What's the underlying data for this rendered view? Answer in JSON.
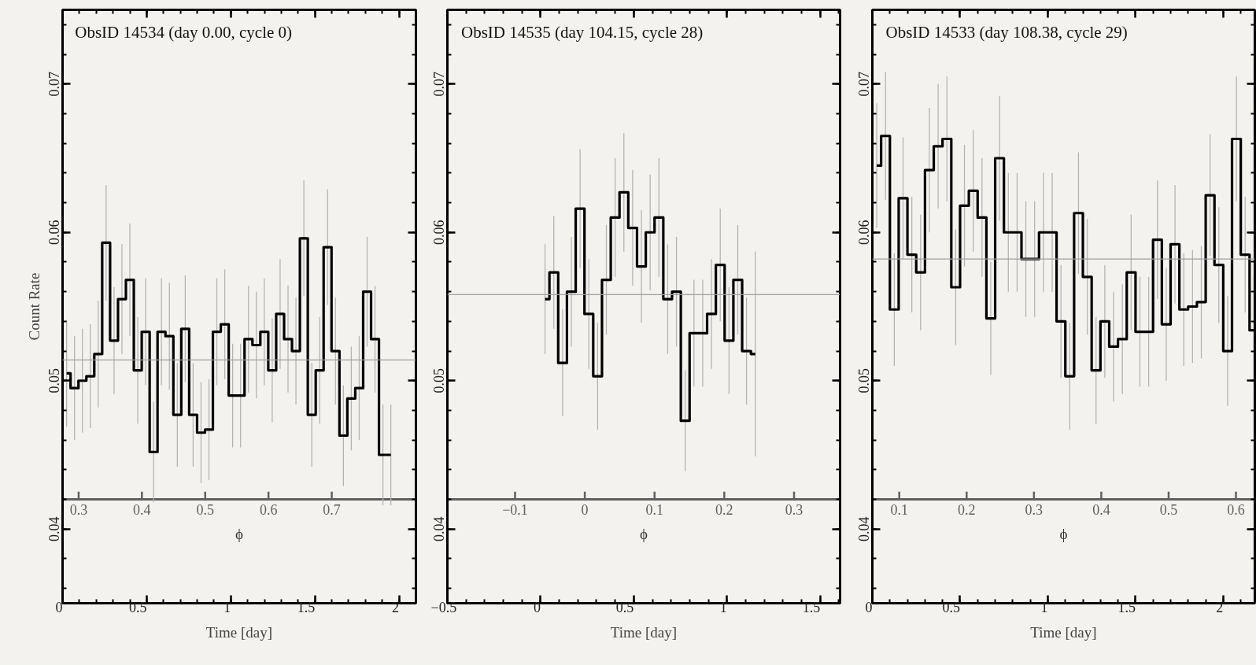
{
  "chart_data": [
    {
      "type": "step",
      "title": "ObsID 14534 (day 0.00, cycle 0)",
      "xlabel": "Time [day]",
      "ylabel": "Count Rate",
      "x2label": "ϕ",
      "xlim": [
        0,
        2.1
      ],
      "xticks": [
        0,
        0.5,
        1,
        1.5,
        2
      ],
      "ylim": [
        0.035,
        0.075
      ],
      "yticks": [
        0.04,
        0.05,
        0.06,
        0.07
      ],
      "x2lim": [
        0.2746,
        0.833
      ],
      "x2ticks": [
        0.3,
        0.4,
        0.5,
        0.6,
        0.7
      ],
      "ref_lines": [
        {
          "axis": "y",
          "value": 0.0514,
          "color": "#a0a0a0"
        }
      ],
      "series": [
        {
          "color": "#000000",
          "x": [
            0.024,
            0.071,
            0.118,
            0.165,
            0.212,
            0.259,
            0.306,
            0.353,
            0.4,
            0.447,
            0.494,
            0.541,
            0.588,
            0.635,
            0.682,
            0.729,
            0.776,
            0.823,
            0.87,
            0.917,
            0.964,
            1.011,
            1.058,
            1.105,
            1.152,
            1.199,
            1.246,
            1.293,
            1.34,
            1.387,
            1.434,
            1.481,
            1.528,
            1.575,
            1.622,
            1.669,
            1.716,
            1.763,
            1.81,
            1.857,
            1.904,
            1.951
          ],
          "values": [
            0.0505,
            0.0495,
            0.05,
            0.0503,
            0.0518,
            0.0593,
            0.0527,
            0.0555,
            0.0568,
            0.0507,
            0.0533,
            0.0452,
            0.0533,
            0.053,
            0.0477,
            0.0535,
            0.0477,
            0.0465,
            0.0467,
            0.0533,
            0.0538,
            0.049,
            0.049,
            0.0528,
            0.0524,
            0.0533,
            0.0507,
            0.0545,
            0.0528,
            0.052,
            0.0596,
            0.0477,
            0.0507,
            0.059,
            0.052,
            0.0463,
            0.0488,
            0.0495,
            0.056,
            0.0528,
            0.045,
            0.045
          ],
          "errors": [
            0.0036,
            0.0035,
            0.0035,
            0.0035,
            0.0036,
            0.0039,
            0.0036,
            0.0037,
            0.0038,
            0.0036,
            0.0036,
            0.0034,
            0.0036,
            0.0036,
            0.0035,
            0.0036,
            0.0035,
            0.0034,
            0.0034,
            0.0036,
            0.0037,
            0.0035,
            0.0035,
            0.0036,
            0.0036,
            0.0036,
            0.0035,
            0.0037,
            0.0036,
            0.0036,
            0.0039,
            0.0035,
            0.0036,
            0.0039,
            0.0036,
            0.0034,
            0.0035,
            0.0035,
            0.0037,
            0.0036,
            0.0034,
            0.0034
          ]
        }
      ]
    },
    {
      "type": "step",
      "title": "ObsID 14535 (day 104.15, cycle 28)",
      "xlabel": "Time [day]",
      "x2label": "ϕ",
      "xlim": [
        -0.5,
        1.607
      ],
      "xticks": [
        {
          "value": -0.5,
          "label": "−0.5"
        },
        0,
        0.5,
        1,
        1.5
      ],
      "ylim": [
        0.035,
        0.075
      ],
      "yticks": [
        0.04,
        0.05,
        0.06,
        0.07
      ],
      "x2lim": [
        -0.197,
        0.366
      ],
      "x2ticks": [
        {
          "value": -0.1,
          "label": "−0.1"
        },
        0,
        0.1,
        0.2,
        0.3
      ],
      "ref_lines": [
        {
          "axis": "y",
          "value": 0.0558,
          "color": "#a0a0a0"
        }
      ],
      "series": [
        {
          "color": "#000000",
          "x": [
            0.024,
            0.071,
            0.118,
            0.165,
            0.212,
            0.259,
            0.306,
            0.353,
            0.4,
            0.447,
            0.494,
            0.541,
            0.588,
            0.635,
            0.682,
            0.729,
            0.776,
            0.823,
            0.87,
            0.917,
            0.964,
            1.011,
            1.058,
            1.105,
            1.152
          ],
          "values": [
            0.0555,
            0.0573,
            0.0512,
            0.056,
            0.0616,
            0.0545,
            0.0503,
            0.0568,
            0.061,
            0.0627,
            0.0603,
            0.0577,
            0.06,
            0.061,
            0.0555,
            0.056,
            0.0473,
            0.0532,
            0.0532,
            0.0545,
            0.0578,
            0.0527,
            0.0568,
            0.052,
            0.0518
          ],
          "errors": [
            0.0037,
            0.0038,
            0.0036,
            0.0037,
            0.004,
            0.0037,
            0.0036,
            0.0037,
            0.004,
            0.004,
            0.0039,
            0.0038,
            0.0039,
            0.004,
            0.0037,
            0.0037,
            0.0034,
            0.0036,
            0.0036,
            0.0037,
            0.0038,
            0.0036,
            0.0037,
            0.0036,
            0.0069
          ]
        }
      ]
    },
    {
      "type": "step",
      "title": "ObsID 14533 (day 108.38, cycle 29)",
      "xlabel": "Time [day]",
      "x2label": "ϕ",
      "xlim": [
        0,
        2.18
      ],
      "xticks": [
        0,
        0.5,
        1,
        1.5,
        2
      ],
      "ylim": [
        0.035,
        0.075
      ],
      "yticks": [
        0.04,
        0.05,
        0.06,
        0.07
      ],
      "x2lim": [
        0.06,
        0.628
      ],
      "x2ticks": [
        0.1,
        0.2,
        0.3,
        0.4,
        0.5,
        0.6
      ],
      "ref_lines": [
        {
          "axis": "y",
          "value": 0.0582,
          "color": "#a0a0a0"
        }
      ],
      "series": [
        {
          "color": "#000000",
          "x": [
            0.025,
            0.075,
            0.125,
            0.175,
            0.225,
            0.275,
            0.325,
            0.375,
            0.425,
            0.475,
            0.525,
            0.575,
            0.625,
            0.675,
            0.725,
            0.775,
            0.825,
            0.875,
            0.925,
            0.975,
            1.025,
            1.075,
            1.125,
            1.175,
            1.225,
            1.275,
            1.325,
            1.375,
            1.425,
            1.475,
            1.525,
            1.575,
            1.625,
            1.675,
            1.725,
            1.775,
            1.825,
            1.875,
            1.925,
            1.975,
            2.025,
            2.075,
            2.125,
            2.175
          ],
          "values": [
            0.0645,
            0.0665,
            0.0548,
            0.0623,
            0.0585,
            0.0573,
            0.0642,
            0.0658,
            0.0663,
            0.0563,
            0.0618,
            0.0628,
            0.061,
            0.0542,
            0.065,
            0.06,
            0.06,
            0.0582,
            0.0582,
            0.06,
            0.06,
            0.054,
            0.0503,
            0.0613,
            0.057,
            0.0507,
            0.054,
            0.0523,
            0.0528,
            0.0573,
            0.0533,
            0.0533,
            0.0595,
            0.0538,
            0.0592,
            0.0548,
            0.055,
            0.0553,
            0.0625,
            0.0578,
            0.052,
            0.0663,
            0.0585,
            0.0534
          ],
          "errors": [
            0.0042,
            0.0043,
            0.0038,
            0.0041,
            0.0039,
            0.0039,
            0.0042,
            0.0042,
            0.0042,
            0.0039,
            0.0041,
            0.0041,
            0.004,
            0.0038,
            0.0042,
            0.004,
            0.004,
            0.0039,
            0.0039,
            0.004,
            0.004,
            0.0038,
            0.0036,
            0.0041,
            0.0039,
            0.0036,
            0.0038,
            0.0037,
            0.0037,
            0.0039,
            0.0037,
            0.0037,
            0.004,
            0.0038,
            0.004,
            0.0038,
            0.0038,
            0.0038,
            0.0041,
            0.0039,
            0.0037,
            0.0042,
            0.0039,
            0.0037
          ]
        }
      ]
    }
  ]
}
